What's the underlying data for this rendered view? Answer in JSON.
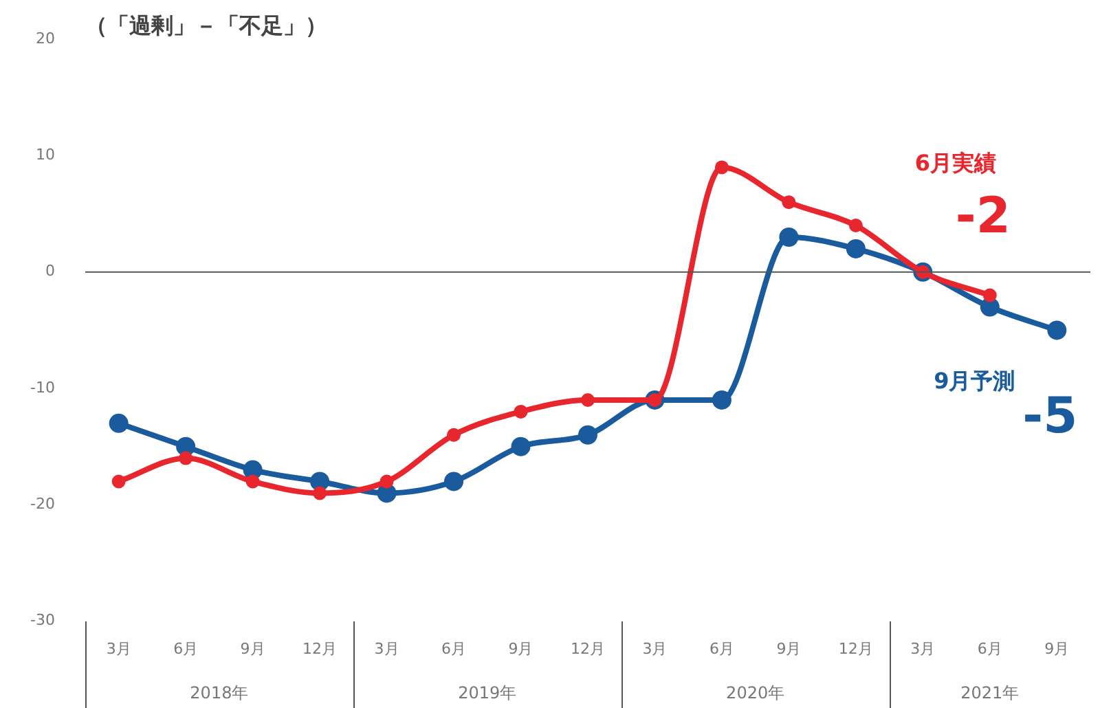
{
  "chart_data": {
    "type": "line",
    "title": "（「過剰」－「不足」）",
    "categories": [
      "3月",
      "6月",
      "9月",
      "12月",
      "3月",
      "6月",
      "9月",
      "12月",
      "3月",
      "6月",
      "9月",
      "12月",
      "3月",
      "6月",
      "9月"
    ],
    "annotations": [
      "2018年",
      "2019年",
      "2020年",
      "2021年"
    ],
    "series": [
      {
        "name": "6月実績",
        "color": "#e8262d",
        "values": [
          -18,
          -16,
          -18,
          -19,
          -18,
          -14,
          -12,
          -11,
          -11,
          9,
          6,
          4,
          0,
          -2,
          null
        ],
        "value_labels": [
          null,
          null,
          null,
          null,
          null,
          null,
          null,
          null,
          null,
          null,
          null,
          null,
          null,
          "-2",
          null
        ]
      },
      {
        "name": "9月予測",
        "color": "#1a5b9e",
        "values": [
          -13,
          -15,
          -17,
          -18,
          -19,
          -18,
          -15,
          -14,
          -11,
          -11,
          3,
          2,
          0,
          -3,
          -5
        ],
        "value_labels": [
          null,
          null,
          null,
          null,
          null,
          null,
          null,
          null,
          null,
          null,
          null,
          null,
          null,
          null,
          "-5"
        ]
      }
    ],
    "ylim": [
      -30,
      20
    ],
    "yticks": [
      -30,
      -20,
      -10,
      0,
      10,
      20
    ],
    "ref_lines": [
      {
        "axis": "y",
        "value": 0,
        "color": "#555555"
      }
    ],
    "grid": false,
    "legend": false,
    "marker": "circle",
    "line_style": "solid"
  }
}
